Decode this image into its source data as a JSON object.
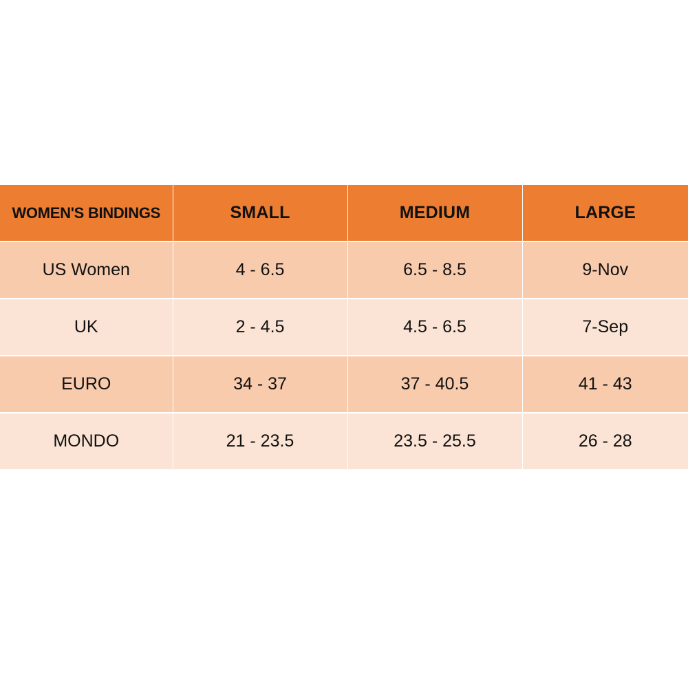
{
  "colors": {
    "header_bg": "#ED7D31",
    "row_dark": "#F8CBAD",
    "row_light": "#FBE4D5",
    "text": "#111111"
  },
  "table": {
    "headers": [
      "WOMEN'S BINDINGS",
      "SMALL",
      "MEDIUM",
      "LARGE"
    ],
    "rows": [
      [
        "US Women",
        "4 - 6.5",
        "6.5 - 8.5",
        "9-Nov"
      ],
      [
        "UK",
        "2 - 4.5",
        "4.5 - 6.5",
        "7-Sep"
      ],
      [
        "EURO",
        "34 - 37",
        "37 - 40.5",
        "41 - 43"
      ],
      [
        "MONDO",
        "21 - 23.5",
        "23.5 - 25.5",
        "26 - 28"
      ]
    ]
  }
}
